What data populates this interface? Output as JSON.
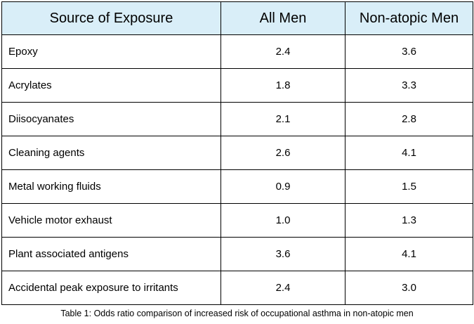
{
  "table": {
    "headers": [
      "Source of Exposure",
      "All Men",
      "Non-atopic Men"
    ],
    "rows": [
      {
        "source": "Epoxy",
        "all_men": "2.4",
        "non_atopic_men": "3.6"
      },
      {
        "source": "Acrylates",
        "all_men": "1.8",
        "non_atopic_men": "3.3"
      },
      {
        "source": "Diisocyanates",
        "all_men": "2.1",
        "non_atopic_men": "2.8"
      },
      {
        "source": "Cleaning agents",
        "all_men": "2.6",
        "non_atopic_men": "4.1"
      },
      {
        "source": "Metal working fluids",
        "all_men": "0.9",
        "non_atopic_men": "1.5"
      },
      {
        "source": "Vehicle motor exhaust",
        "all_men": "1.0",
        "non_atopic_men": "1.3"
      },
      {
        "source": "Plant associated antigens",
        "all_men": "3.6",
        "non_atopic_men": "4.1"
      },
      {
        "source": "Accidental peak exposure to irritants",
        "all_men": "2.4",
        "non_atopic_men": "3.0"
      }
    ]
  },
  "caption": "Table 1: Odds ratio comparison of increased risk of occupational asthma in non-atopic men",
  "colors": {
    "header_background": "#d9eef8",
    "border": "#000000"
  }
}
